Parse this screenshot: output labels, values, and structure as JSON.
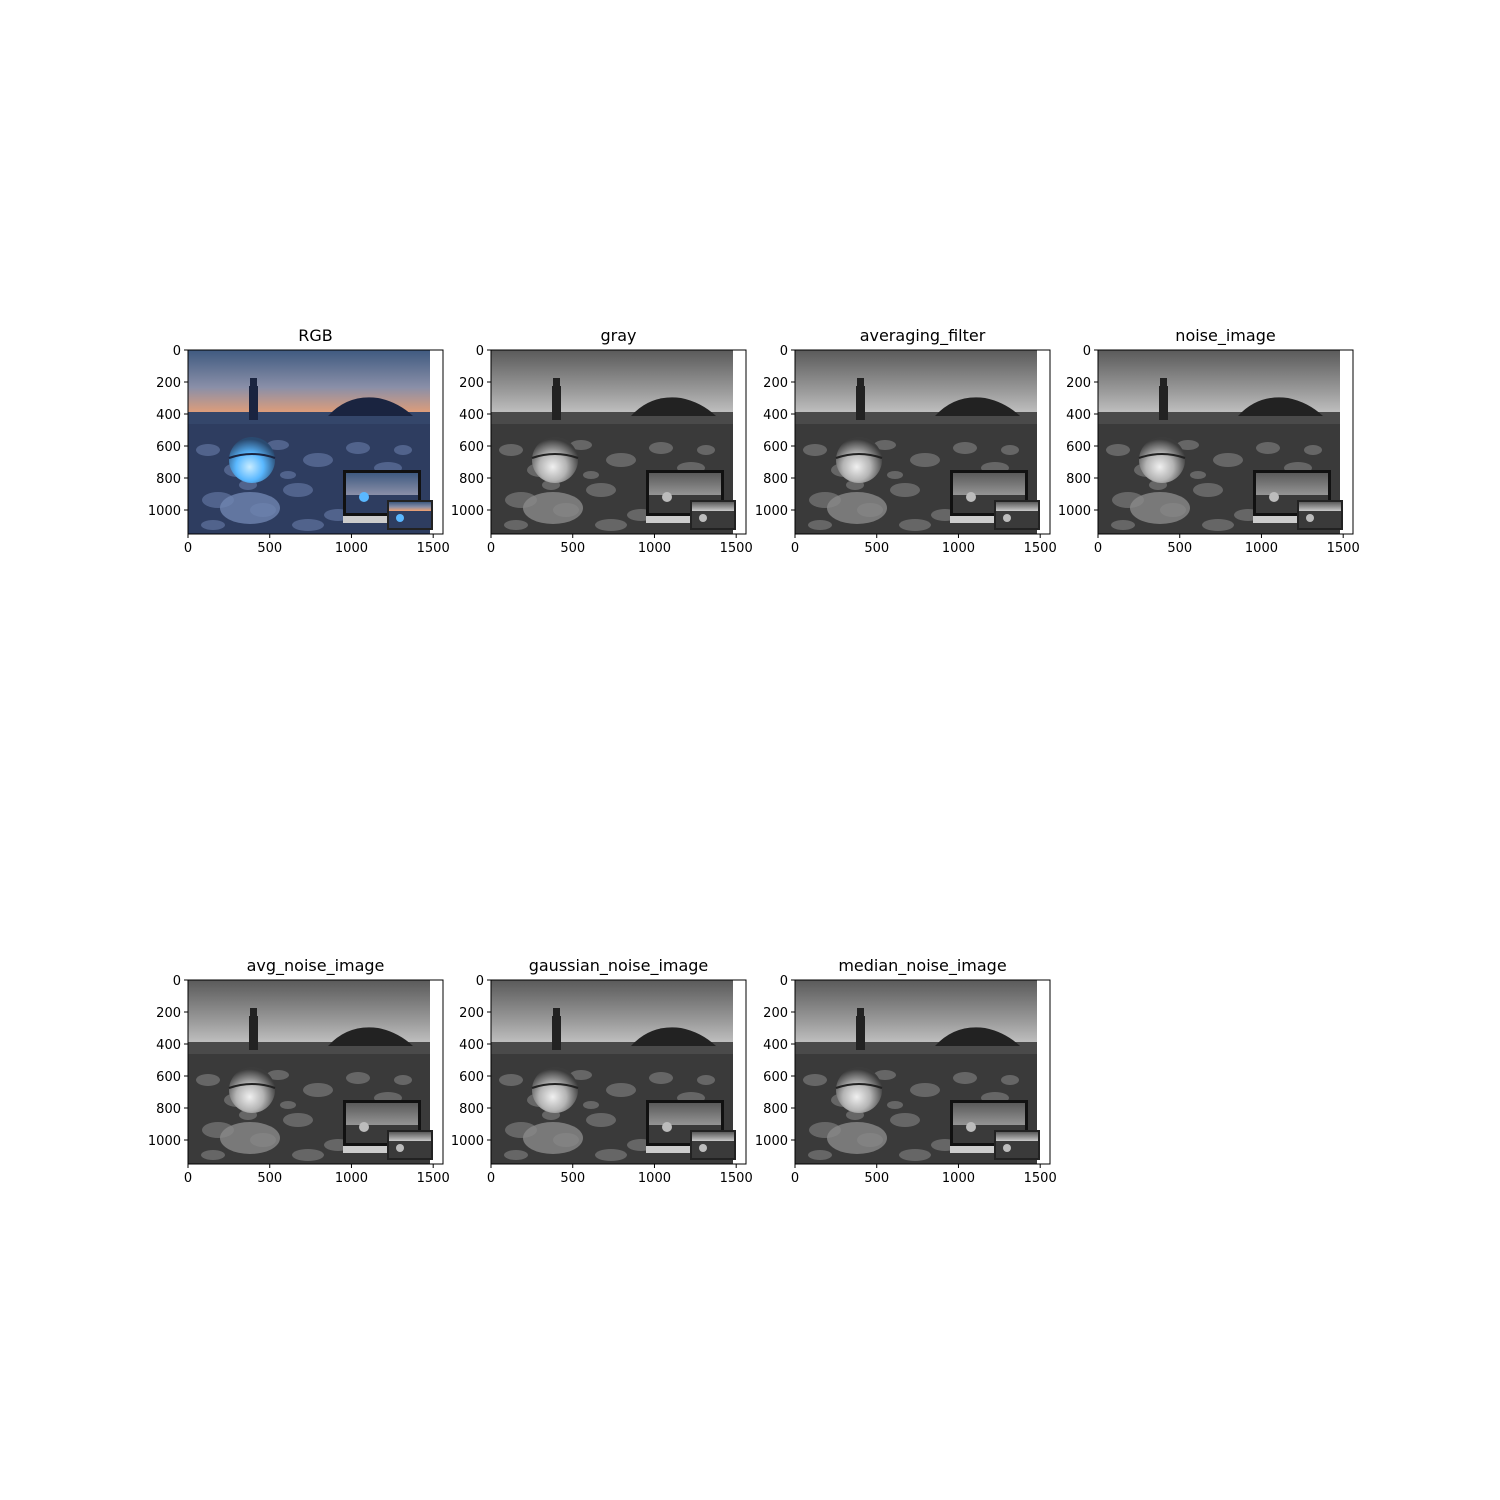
{
  "figure": {
    "panels": [
      {
        "title": "RGB",
        "mode": "color"
      },
      {
        "title": "gray",
        "mode": "gray"
      },
      {
        "title": "averaging_filter",
        "mode": "gray"
      },
      {
        "title": "noise_image",
        "mode": "gray"
      },
      {
        "title": "avg_noise_image",
        "mode": "gray"
      },
      {
        "title": "gaussian_noise_image",
        "mode": "gray"
      },
      {
        "title": "median_noise_image",
        "mode": "gray"
      }
    ],
    "x_ticks": [
      "0",
      "500",
      "1000",
      "1500"
    ],
    "y_ticks": [
      "0",
      "200",
      "400",
      "600",
      "800",
      "1000"
    ],
    "colors": {
      "sky_top": "#3f5a80",
      "sky_horizon": "#f0a070",
      "sea": "#34466a",
      "rocks": "#2e3d60",
      "sphere_glow": "#5ab8ff",
      "gray_sky_top": "#5a5a5a",
      "gray_horizon": "#c8c8c8",
      "gray_rocks": "#3a3a3a"
    }
  }
}
